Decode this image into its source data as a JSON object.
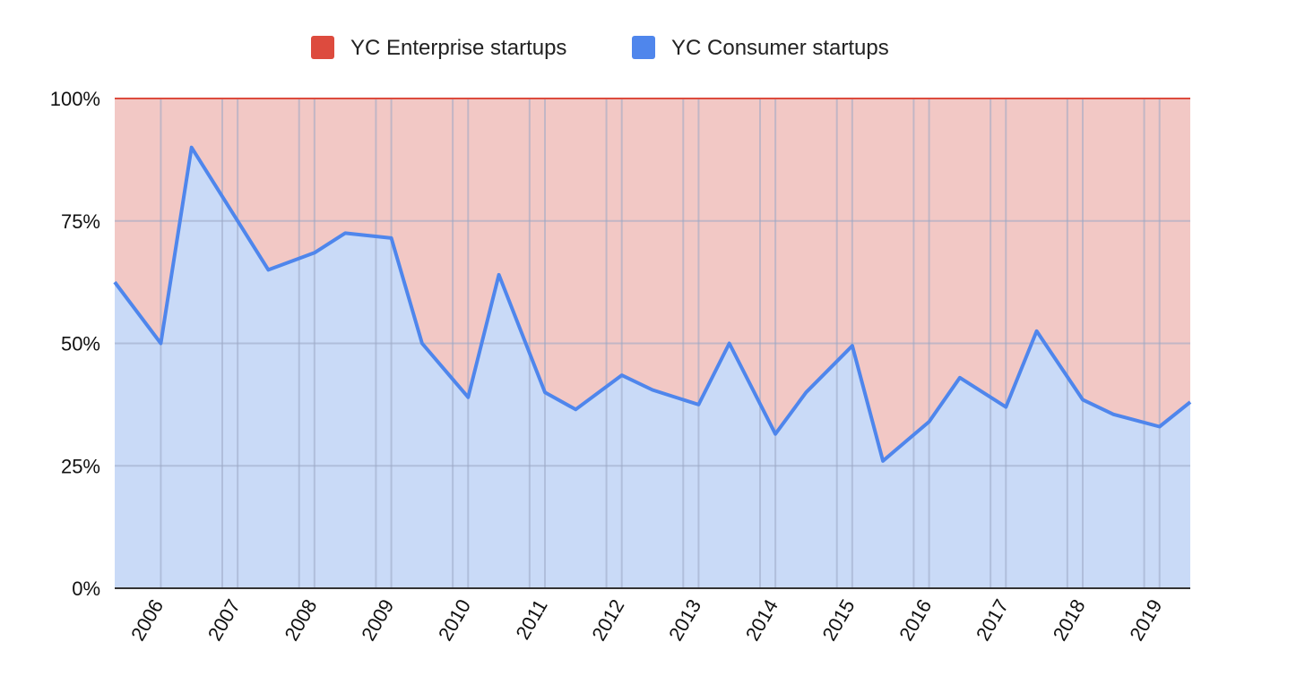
{
  "chart_data": {
    "type": "area",
    "stacked_percent": true,
    "title": "",
    "xlabel": "",
    "ylabel": "",
    "ylim": [
      0,
      100
    ],
    "y_ticks": [
      "0%",
      "25%",
      "50%",
      "75%",
      "100%"
    ],
    "x_ticks": [
      "2006",
      "2007",
      "2008",
      "2009",
      "2010",
      "2011",
      "2012",
      "2013",
      "2014",
      "2015",
      "2016",
      "2017",
      "2018",
      "2019"
    ],
    "x_range": [
      2005.6,
      2019.6
    ],
    "grid": true,
    "legend_position": "top-center",
    "x": [
      2005.6,
      2006.2,
      2006.6,
      2007.0,
      2007.6,
      2008.2,
      2008.6,
      2009.2,
      2009.6,
      2010.2,
      2010.6,
      2011.2,
      2011.6,
      2012.2,
      2012.6,
      2013.2,
      2013.6,
      2014.2,
      2014.6,
      2015.2,
      2015.6,
      2016.2,
      2016.6,
      2017.2,
      2017.6,
      2018.2,
      2018.6,
      2019.2,
      2019.6
    ],
    "series": [
      {
        "name": "YC Enterprise startups",
        "color": "#dd4b3e",
        "fill": "#f2c8c5",
        "values": [
          37.5,
          50,
          10,
          20,
          35,
          31.5,
          27.5,
          28.5,
          50,
          61,
          36,
          60,
          63.5,
          56.5,
          59.5,
          62.5,
          50,
          68.5,
          60,
          50.5,
          74,
          66,
          57,
          63,
          47.5,
          61.5,
          64.5,
          67,
          62
        ]
      },
      {
        "name": "YC Consumer startups",
        "color": "#4f86ec",
        "fill": "#c9daf7",
        "values": [
          62.5,
          50,
          90,
          80,
          65,
          68.5,
          72.5,
          71.5,
          50,
          39,
          64,
          40,
          36.5,
          43.5,
          40.5,
          37.5,
          50,
          31.5,
          40,
          49.5,
          26,
          34,
          43,
          37,
          52.5,
          38.5,
          35.5,
          33,
          38
        ]
      }
    ]
  }
}
